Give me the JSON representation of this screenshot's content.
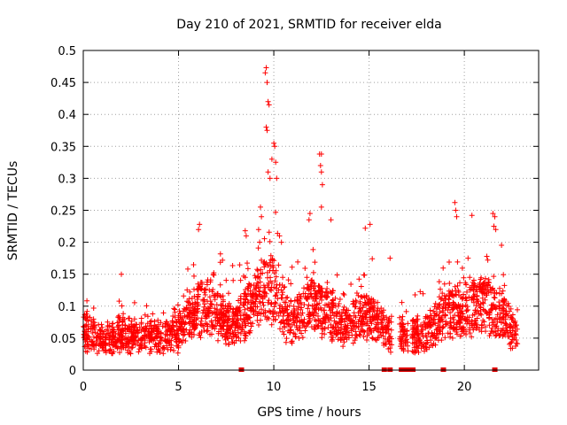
{
  "chart_data": {
    "type": "scatter",
    "title": "Day 210 of 2021, SRMTID for receiver elda",
    "xlabel": "GPS time / hours",
    "ylabel": "SRMTID / TECUs",
    "xlim": [
      0,
      23.9
    ],
    "ylim": [
      0,
      0.5
    ],
    "x_ticks": [
      0,
      5,
      10,
      15,
      20
    ],
    "y_ticks": [
      0,
      0.05,
      0.1,
      0.15,
      0.2,
      0.25,
      0.3,
      0.35,
      0.4,
      0.45,
      0.5
    ],
    "x_tick_labels": [
      "0",
      "5",
      "10",
      "15",
      "20"
    ],
    "y_tick_labels": [
      "0",
      "0.05",
      "0.1",
      "0.15",
      "0.2",
      "0.25",
      "0.3",
      "0.35",
      "0.4",
      "0.45",
      "0.5"
    ],
    "grid": true,
    "marker": "+",
    "series_color": "#ff0000",
    "trend": [
      [
        0,
        0.065
      ],
      [
        1,
        0.055
      ],
      [
        2,
        0.06
      ],
      [
        3,
        0.06
      ],
      [
        4,
        0.055
      ],
      [
        5,
        0.065
      ],
      [
        5.5,
        0.09
      ],
      [
        6,
        0.11
      ],
      [
        6.5,
        0.11
      ],
      [
        7,
        0.095
      ],
      [
        7.5,
        0.085
      ],
      [
        8,
        0.08
      ],
      [
        8.5,
        0.1
      ],
      [
        9,
        0.115
      ],
      [
        9.5,
        0.14
      ],
      [
        10,
        0.145
      ],
      [
        10.5,
        0.1
      ],
      [
        11,
        0.08
      ],
      [
        11.5,
        0.1
      ],
      [
        12,
        0.12
      ],
      [
        12.5,
        0.11
      ],
      [
        13,
        0.1
      ],
      [
        13.5,
        0.075
      ],
      [
        14,
        0.075
      ],
      [
        14.5,
        0.1
      ],
      [
        15,
        0.095
      ],
      [
        15.5,
        0.08
      ],
      [
        16,
        0.065
      ],
      [
        16.5,
        0.06
      ],
      [
        17,
        0.055
      ],
      [
        17.5,
        0.06
      ],
      [
        18,
        0.065
      ],
      [
        18.5,
        0.08
      ],
      [
        19,
        0.1
      ],
      [
        19.5,
        0.105
      ],
      [
        20,
        0.1
      ],
      [
        20.5,
        0.11
      ],
      [
        21,
        0.115
      ],
      [
        21.5,
        0.105
      ],
      [
        22,
        0.095
      ],
      [
        22.5,
        0.07
      ],
      [
        23,
        0.06
      ]
    ],
    "peaks": [
      {
        "x": 9.6,
        "y": 0.473
      },
      {
        "x": 9.55,
        "y": 0.465
      },
      {
        "x": 9.65,
        "y": 0.45
      },
      {
        "x": 9.7,
        "y": 0.42
      },
      {
        "x": 9.75,
        "y": 0.415
      },
      {
        "x": 9.6,
        "y": 0.38
      },
      {
        "x": 9.65,
        "y": 0.375
      },
      {
        "x": 10,
        "y": 0.355
      },
      {
        "x": 10.05,
        "y": 0.35
      },
      {
        "x": 9.9,
        "y": 0.33
      },
      {
        "x": 10.1,
        "y": 0.325
      },
      {
        "x": 9.7,
        "y": 0.31
      },
      {
        "x": 9.8,
        "y": 0.3
      },
      {
        "x": 10.15,
        "y": 0.3
      },
      {
        "x": 12.4,
        "y": 0.338
      },
      {
        "x": 12.5,
        "y": 0.338
      },
      {
        "x": 12.45,
        "y": 0.32
      },
      {
        "x": 12.5,
        "y": 0.31
      },
      {
        "x": 12.55,
        "y": 0.29
      },
      {
        "x": 12.5,
        "y": 0.255
      },
      {
        "x": 19.5,
        "y": 0.262
      },
      {
        "x": 19.55,
        "y": 0.25
      },
      {
        "x": 19.6,
        "y": 0.24
      },
      {
        "x": 20.4,
        "y": 0.242
      },
      {
        "x": 21.5,
        "y": 0.245
      },
      {
        "x": 21.6,
        "y": 0.24
      },
      {
        "x": 21.55,
        "y": 0.225
      },
      {
        "x": 21.65,
        "y": 0.22
      },
      {
        "x": 6.1,
        "y": 0.228
      },
      {
        "x": 6.05,
        "y": 0.22
      },
      {
        "x": 8.5,
        "y": 0.218
      },
      {
        "x": 8.55,
        "y": 0.21
      },
      {
        "x": 15.05,
        "y": 0.228
      },
      {
        "x": 14.8,
        "y": 0.222
      },
      {
        "x": 16.1,
        "y": 0.175
      },
      {
        "x": 11.9,
        "y": 0.245
      },
      {
        "x": 11.85,
        "y": 0.235
      },
      {
        "x": 2,
        "y": 0.15
      },
      {
        "x": 10.3,
        "y": 0.21
      },
      {
        "x": 10.4,
        "y": 0.2
      },
      {
        "x": 9.3,
        "y": 0.255
      },
      {
        "x": 9.35,
        "y": 0.24
      },
      {
        "x": 13,
        "y": 0.235
      },
      {
        "x": 9.2,
        "y": 0.22
      }
    ],
    "floor_points": [
      8.3,
      15.8,
      16.1,
      16.7,
      16.8,
      16.9,
      17.0,
      17.1,
      17.2,
      17.3,
      18.9,
      21.6
    ]
  }
}
